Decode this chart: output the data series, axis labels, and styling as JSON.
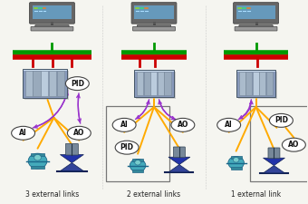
{
  "labels": [
    "3 external links",
    "2 external links",
    "1 external link"
  ],
  "background_color": "#f5f5f0",
  "colors": {
    "bus_red": "#cc0000",
    "bus_green": "#009900",
    "arrow_purple": "#9933cc",
    "wire_orange": "#ffaa00",
    "monitor_screen": "#6699bb",
    "monitor_body": "#888888",
    "plc_body": "#8899bb",
    "plc_slot": "#aabbd0",
    "sensor_body": "#55aaaa",
    "valve_body": "#334488",
    "field_box_edge": "#777777",
    "ellipse_edge": "#444444",
    "text_dark": "#111111",
    "text_label": "#222222"
  }
}
